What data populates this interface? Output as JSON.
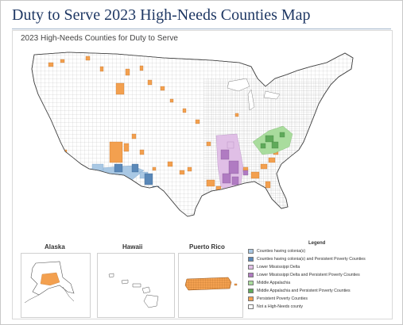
{
  "page": {
    "title": "Duty to Serve 2023 High-Needs Counties Map"
  },
  "map": {
    "title": "2023 High-Needs Counties for Duty to Serve"
  },
  "insets": {
    "alaska": "Alaska",
    "hawaii": "Hawaii",
    "puerto_rico": "Puerto Rico"
  },
  "legend": {
    "title": "Legend",
    "items": [
      {
        "label": "Counties having colonia(s)",
        "color": "#a9c8e4"
      },
      {
        "label": "Counties having colonia(s) and Persistent Poverty Counties",
        "color": "#5a88b8"
      },
      {
        "label": "Lower Mississippi Delta",
        "color": "#e0bfe6"
      },
      {
        "label": "Lower Mississippi Delta and Persistent Poverty Counties",
        "color": "#b07bc2"
      },
      {
        "label": "Middle Appalachia",
        "color": "#a9dc9d"
      },
      {
        "label": "Middle Appalachia and Persistent Poverty Counties",
        "color": "#5faa5a"
      },
      {
        "label": "Persistent Poverty Counties",
        "color": "#f3a04f"
      },
      {
        "label": "Not a High-Needs county",
        "color": "#ffffff"
      }
    ]
  }
}
